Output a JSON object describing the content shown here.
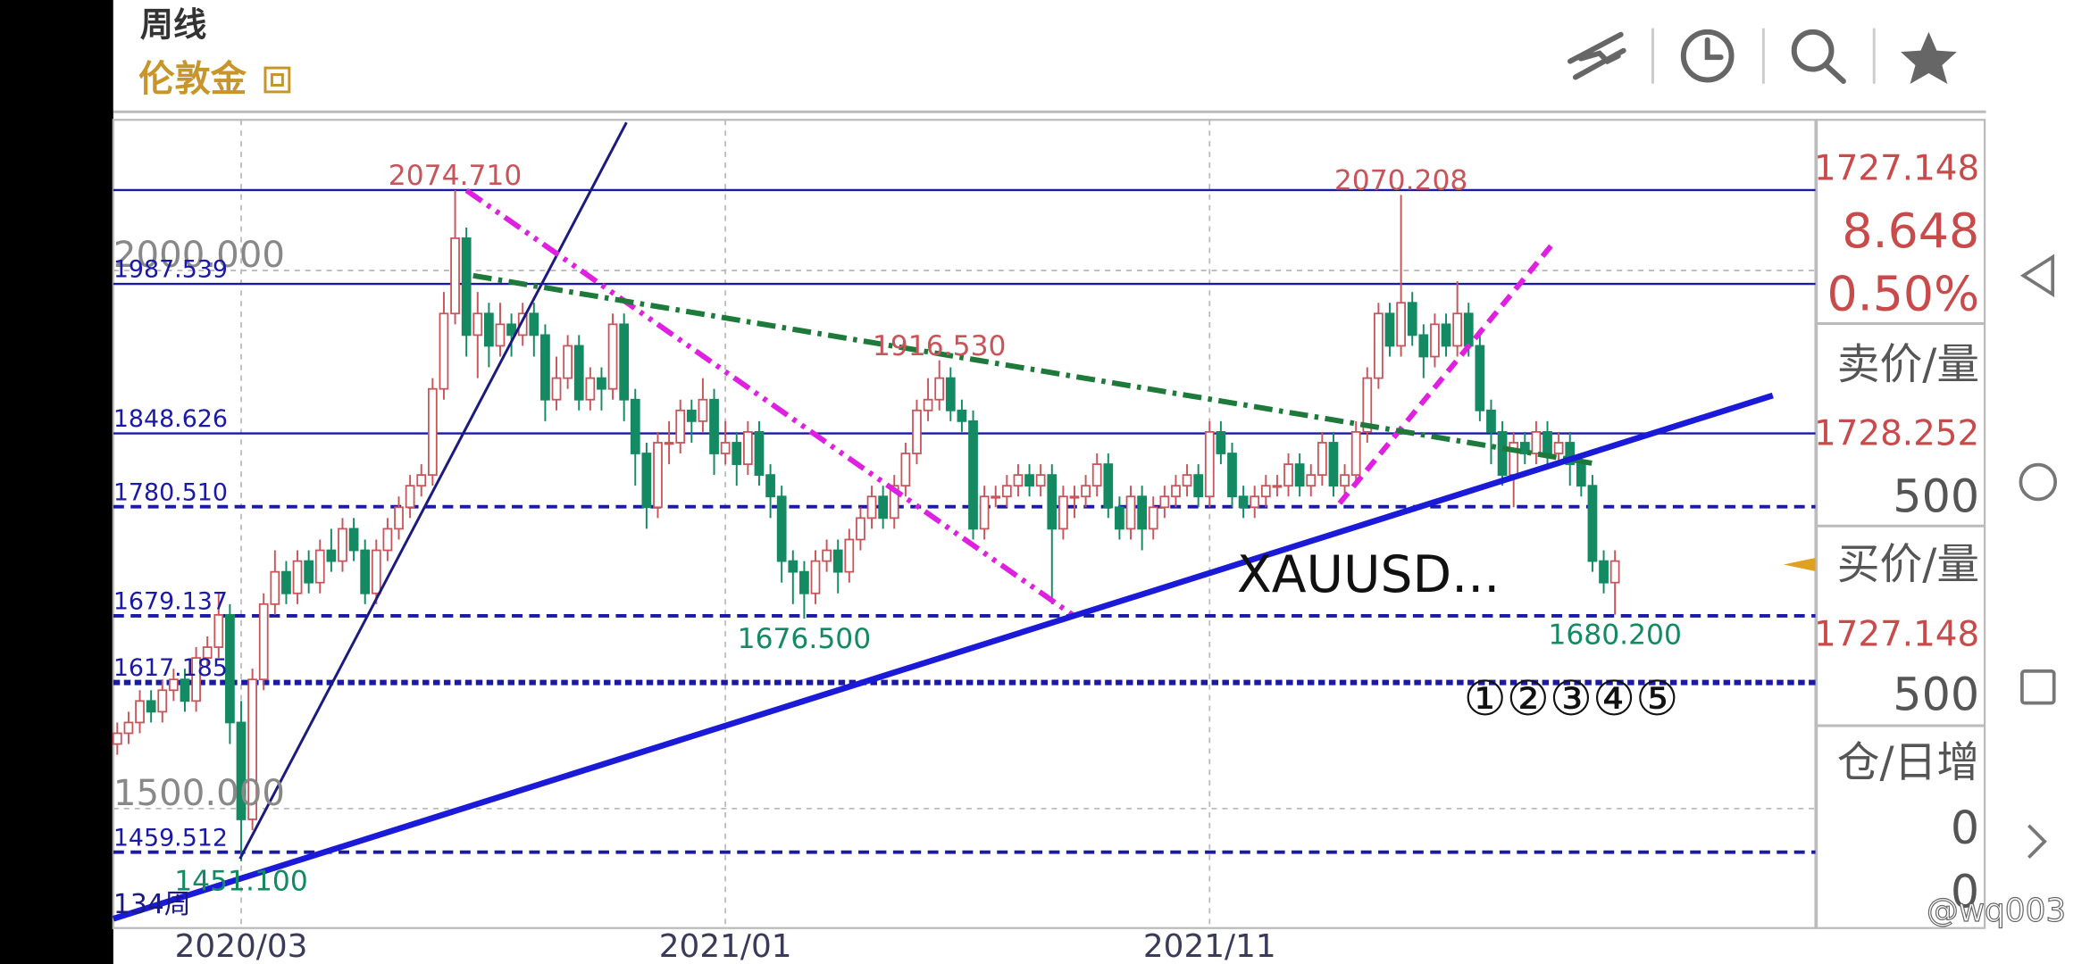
{
  "header": {
    "period": "周线",
    "symbol": "伦敦金"
  },
  "quote": {
    "last": "1727.148",
    "change": "8.648",
    "change_pct": "0.50%",
    "ask_label": "卖价/量",
    "ask": "1728.252",
    "ask_volume": "500",
    "bid_label": "买价/量",
    "bid": "1727.148",
    "bid_volume": "500",
    "oi_label": "仓/日增",
    "oi": "0",
    "oi_change": "0"
  },
  "watermark": "@wq003",
  "chart_data": {
    "type": "candlestick",
    "up_color": "#c8555a",
    "down_color": "#138a62",
    "level_color": "#1a1aa6",
    "ylim": [
      1389,
      2140
    ],
    "xlim": [
      -0.355,
      150.8
    ],
    "yticks": [
      {
        "value": 2000,
        "label": "2000.000"
      },
      {
        "value": 1500,
        "label": "1500.000"
      }
    ],
    "xticks": [
      {
        "value": 11,
        "label": "2020/03"
      },
      {
        "value": 54,
        "label": "2021/01"
      },
      {
        "value": 97,
        "label": "2021/11"
      }
    ],
    "grid": true,
    "levels": [
      {
        "value": 1987.539,
        "style": "solid"
      },
      {
        "value": 1848.626,
        "style": "solid"
      },
      {
        "value": 1780.51,
        "label": "1780.510",
        "style": "dashed"
      },
      {
        "value": 1679.137,
        "style": "dashed"
      },
      {
        "value": 1617.185,
        "style": "dotted"
      },
      {
        "value": 1459.512,
        "style": "dashed"
      }
    ],
    "annotations": [
      {
        "value": 2074.71,
        "label": "2074.710",
        "level_line": true
      },
      {
        "value": 2070.208,
        "label": "2070.208"
      },
      {
        "value": 1916.53,
        "label": "1916.530"
      },
      {
        "value": 1451.1,
        "label": "1451.100"
      },
      {
        "value": 1676.5,
        "label": "1676.500"
      },
      {
        "value": 1680.2,
        "label": "1680.200"
      }
    ],
    "symbol_label": "XAUUSD...",
    "count_label": "134周",
    "tools_label": "①②③④⑤",
    "open": [
      1560,
      1570,
      1580,
      1600,
      1590,
      1610,
      1620,
      1600,
      1640,
      1650,
      1680,
      1580,
      1490,
      1620,
      1690,
      1720,
      1700,
      1730,
      1710,
      1740,
      1730,
      1760,
      1740,
      1700,
      1740,
      1760,
      1780,
      1800,
      1810,
      1890,
      1960,
      2030,
      1940,
      1960,
      1930,
      1950,
      1940,
      1960,
      1940,
      1880,
      1900,
      1930,
      1880,
      1900,
      1890,
      1950,
      1880,
      1830,
      1780,
      1840,
      1840,
      1870,
      1860,
      1880,
      1830,
      1840,
      1820,
      1850,
      1810,
      1790,
      1730,
      1720,
      1700,
      1730,
      1740,
      1720,
      1750,
      1770,
      1790,
      1770,
      1800,
      1830,
      1870,
      1880,
      1900,
      1870,
      1860,
      1760,
      1790,
      1790,
      1800,
      1810,
      1800,
      1810,
      1760,
      1790,
      1790,
      1800,
      1820,
      1780,
      1760,
      1790,
      1760,
      1780,
      1790,
      1800,
      1810,
      1790,
      1850,
      1830,
      1790,
      1780,
      1790,
      1800,
      1800,
      1820,
      1800,
      1810,
      1840,
      1800,
      1810,
      1850,
      1900,
      1960,
      1930,
      1970,
      1940,
      1920,
      1950,
      1930,
      1960,
      1930,
      1870,
      1850,
      1810,
      1840,
      1830,
      1850,
      1830,
      1840,
      1820,
      1800,
      1730,
      1710
    ],
    "high": [
      1580,
      1590,
      1610,
      1610,
      1620,
      1630,
      1630,
      1650,
      1660,
      1700,
      1690,
      1600,
      1630,
      1700,
      1740,
      1730,
      1740,
      1740,
      1750,
      1760,
      1770,
      1770,
      1750,
      1750,
      1770,
      1790,
      1810,
      1820,
      1900,
      1980,
      2074.71,
      2040,
      1980,
      1970,
      1970,
      1960,
      1970,
      1970,
      1950,
      1920,
      1940,
      1940,
      1910,
      1910,
      1960,
      1960,
      1890,
      1840,
      1850,
      1860,
      1880,
      1880,
      1900,
      1890,
      1860,
      1850,
      1860,
      1860,
      1820,
      1800,
      1740,
      1730,
      1740,
      1750,
      1750,
      1760,
      1780,
      1800,
      1800,
      1810,
      1840,
      1880,
      1900,
      1916.53,
      1910,
      1880,
      1870,
      1800,
      1800,
      1810,
      1820,
      1820,
      1820,
      1820,
      1800,
      1800,
      1810,
      1830,
      1830,
      1790,
      1800,
      1800,
      1790,
      1800,
      1810,
      1820,
      1820,
      1860,
      1860,
      1840,
      1800,
      1800,
      1810,
      1810,
      1830,
      1830,
      1820,
      1850,
      1850,
      1820,
      1860,
      1910,
      1970,
      1970,
      2070.208,
      1980,
      1950,
      1960,
      1960,
      1990,
      1970,
      1940,
      1880,
      1860,
      1850,
      1850,
      1860,
      1860,
      1850,
      1850,
      1830,
      1810,
      1740,
      1740
    ],
    "low": [
      1550,
      1560,
      1570,
      1580,
      1580,
      1600,
      1590,
      1590,
      1630,
      1640,
      1560,
      1451.1,
      1480,
      1610,
      1680,
      1690,
      1690,
      1700,
      1700,
      1720,
      1720,
      1730,
      1690,
      1690,
      1730,
      1750,
      1770,
      1790,
      1800,
      1880,
      1950,
      1920,
      1900,
      1910,
      1920,
      1920,
      1930,
      1920,
      1860,
      1870,
      1890,
      1870,
      1870,
      1870,
      1880,
      1860,
      1800,
      1760,
      1770,
      1820,
      1830,
      1840,
      1850,
      1810,
      1820,
      1800,
      1810,
      1800,
      1770,
      1710,
      1690,
      1676.5,
      1690,
      1720,
      1700,
      1710,
      1740,
      1760,
      1760,
      1760,
      1790,
      1820,
      1860,
      1870,
      1860,
      1850,
      1750,
      1750,
      1780,
      1780,
      1790,
      1790,
      1790,
      1690,
      1750,
      1770,
      1780,
      1790,
      1770,
      1750,
      1750,
      1740,
      1750,
      1770,
      1780,
      1790,
      1780,
      1780,
      1820,
      1780,
      1770,
      1770,
      1780,
      1790,
      1790,
      1790,
      1790,
      1800,
      1790,
      1790,
      1800,
      1840,
      1890,
      1920,
      1920,
      1930,
      1900,
      1910,
      1920,
      1920,
      1920,
      1860,
      1820,
      1800,
      1780,
      1820,
      1820,
      1820,
      1820,
      1800,
      1790,
      1720,
      1700,
      1680.2
    ],
    "close": [
      1570,
      1580,
      1600,
      1590,
      1610,
      1620,
      1600,
      1640,
      1650,
      1680,
      1580,
      1490,
      1620,
      1690,
      1720,
      1700,
      1730,
      1710,
      1740,
      1730,
      1760,
      1740,
      1700,
      1740,
      1760,
      1780,
      1800,
      1810,
      1890,
      1960,
      2030,
      1940,
      1960,
      1930,
      1950,
      1940,
      1960,
      1940,
      1880,
      1900,
      1930,
      1880,
      1900,
      1890,
      1950,
      1880,
      1830,
      1780,
      1840,
      1840,
      1870,
      1860,
      1880,
      1830,
      1840,
      1820,
      1850,
      1810,
      1790,
      1730,
      1720,
      1700,
      1730,
      1740,
      1720,
      1750,
      1770,
      1790,
      1770,
      1800,
      1830,
      1870,
      1880,
      1900,
      1870,
      1860,
      1760,
      1790,
      1790,
      1800,
      1810,
      1800,
      1810,
      1760,
      1790,
      1790,
      1800,
      1820,
      1780,
      1760,
      1790,
      1760,
      1780,
      1790,
      1800,
      1810,
      1790,
      1850,
      1830,
      1790,
      1780,
      1790,
      1800,
      1800,
      1820,
      1800,
      1810,
      1840,
      1800,
      1810,
      1850,
      1900,
      1960,
      1930,
      1970,
      1940,
      1920,
      1950,
      1930,
      1960,
      1930,
      1870,
      1850,
      1810,
      1840,
      1830,
      1850,
      1830,
      1840,
      1820,
      1800,
      1730,
      1710,
      1730
    ]
  }
}
